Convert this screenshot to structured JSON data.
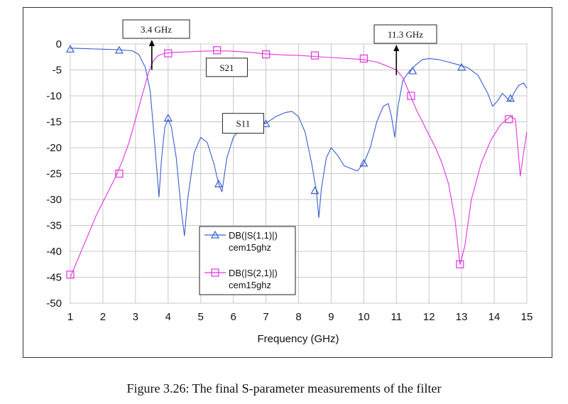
{
  "caption": "Figure 3.26: The final S-parameter measurements of the filter",
  "chart_data": {
    "type": "line",
    "title": "",
    "xlabel": "Frequency (GHz)",
    "ylabel": "",
    "xlim": [
      1,
      15
    ],
    "ylim": [
      -50,
      0
    ],
    "xticks": [
      "1",
      "2",
      "3",
      "4",
      "5",
      "6",
      "7",
      "8",
      "9",
      "10",
      "11",
      "12",
      "13",
      "14",
      "15"
    ],
    "yticks": [
      "0",
      "-5",
      "-10",
      "-15",
      "-20",
      "-25",
      "-30",
      "-35",
      "-40",
      "-45",
      "-50"
    ],
    "grid": true,
    "legend_placement": "bottom-center",
    "series": [
      {
        "name": "DB(|S(1,1)|)",
        "sub": "cem15ghz",
        "color": "#3a5fcd",
        "marker": "triangle",
        "x": [
          1.0,
          1.5,
          2.0,
          2.5,
          2.9,
          3.1,
          3.3,
          3.45,
          3.6,
          3.72,
          3.8,
          3.9,
          4.0,
          4.1,
          4.25,
          4.4,
          4.5,
          4.6,
          4.8,
          5.0,
          5.2,
          5.4,
          5.55,
          5.65,
          5.8,
          6.0,
          6.2,
          6.4,
          6.6,
          6.8,
          7.0,
          7.3,
          7.6,
          7.8,
          8.0,
          8.2,
          8.4,
          8.55,
          8.62,
          8.7,
          8.85,
          9.0,
          9.2,
          9.4,
          9.6,
          9.8,
          10.0,
          10.2,
          10.4,
          10.6,
          10.75,
          10.85,
          10.95,
          11.05,
          11.2,
          11.4,
          11.6,
          11.8,
          12.0,
          12.3,
          12.6,
          12.9,
          13.2,
          13.5,
          13.8,
          13.95,
          14.1,
          14.25,
          14.4,
          14.5,
          14.6,
          14.75,
          14.9,
          15.0
        ],
        "y": [
          -0.8,
          -0.9,
          -1.0,
          -1.1,
          -1.3,
          -2.0,
          -4.5,
          -9.0,
          -20.0,
          -29.5,
          -22.0,
          -16.0,
          -14.5,
          -16.0,
          -22.0,
          -32.0,
          -37.0,
          -30.0,
          -21.0,
          -18.0,
          -19.0,
          -23.0,
          -27.0,
          -28.5,
          -22.0,
          -18.0,
          -16.5,
          -17.0,
          -16.0,
          -15.5,
          -15.3,
          -14.0,
          -13.2,
          -13.0,
          -14.0,
          -17.0,
          -23.0,
          -28.5,
          -33.5,
          -28.0,
          -22.0,
          -20.0,
          -21.5,
          -23.5,
          -24.0,
          -24.5,
          -23.0,
          -20.0,
          -15.0,
          -12.0,
          -11.5,
          -14.0,
          -18.0,
          -12.0,
          -7.0,
          -5.2,
          -4.0,
          -3.0,
          -2.8,
          -3.0,
          -3.5,
          -4.0,
          -4.6,
          -6.0,
          -9.5,
          -12.0,
          -11.0,
          -9.5,
          -10.5,
          -11.0,
          -9.5,
          -8.0,
          -7.5,
          -8.5
        ],
        "markers": [
          [
            1.0,
            -1.0
          ],
          [
            2.5,
            -1.2
          ],
          [
            4.0,
            -14.3
          ],
          [
            5.55,
            -27.0
          ],
          [
            7.0,
            -15.4
          ],
          [
            8.5,
            -28.3
          ],
          [
            10.0,
            -23.0
          ],
          [
            11.5,
            -5.2
          ],
          [
            13.0,
            -4.5
          ],
          [
            14.5,
            -10.5
          ]
        ]
      },
      {
        "name": "DB(|S(2,1)|)",
        "sub": "cem15ghz",
        "color": "#e233e2",
        "marker": "square",
        "x": [
          1.0,
          1.2,
          1.4,
          1.6,
          1.8,
          2.0,
          2.2,
          2.4,
          2.6,
          2.8,
          3.0,
          3.2,
          3.4,
          3.55,
          3.7,
          3.9,
          4.2,
          4.6,
          5.0,
          5.5,
          6.0,
          6.5,
          7.0,
          7.5,
          8.0,
          8.5,
          9.0,
          9.5,
          10.0,
          10.4,
          10.7,
          11.0,
          11.2,
          11.4,
          11.6,
          11.8,
          12.0,
          12.2,
          12.4,
          12.6,
          12.8,
          12.95,
          13.1,
          13.3,
          13.6,
          13.9,
          14.2,
          14.5,
          14.65,
          14.8,
          14.9,
          15.0
        ],
        "y": [
          -45.0,
          -42.0,
          -39.0,
          -36.0,
          -33.0,
          -30.5,
          -28.0,
          -25.5,
          -22.5,
          -19.0,
          -14.5,
          -10.0,
          -5.5,
          -3.2,
          -2.2,
          -1.8,
          -1.6,
          -1.5,
          -1.4,
          -1.3,
          -1.4,
          -1.6,
          -1.9,
          -2.1,
          -2.2,
          -2.4,
          -2.6,
          -2.8,
          -3.0,
          -3.5,
          -4.2,
          -5.0,
          -6.5,
          -9.5,
          -12.5,
          -15.0,
          -17.5,
          -20.0,
          -23.0,
          -27.0,
          -34.0,
          -42.5,
          -39.0,
          -30.0,
          -23.0,
          -18.5,
          -15.5,
          -14.0,
          -14.5,
          -25.5,
          -21.0,
          -17.0
        ],
        "markers": [
          [
            1.0,
            -44.5
          ],
          [
            2.5,
            -25.0
          ],
          [
            4.0,
            -1.8
          ],
          [
            5.5,
            -1.2
          ],
          [
            7.0,
            -2.0
          ],
          [
            8.5,
            -2.2
          ],
          [
            10.0,
            -2.8
          ],
          [
            11.45,
            -10.0
          ],
          [
            12.95,
            -42.5
          ],
          [
            14.45,
            -14.5
          ]
        ]
      }
    ],
    "annotations": [
      {
        "text": "3.4 GHz",
        "x": 3.5,
        "arrow": true
      },
      {
        "text": "11.3 GHz",
        "x": 11.0,
        "arrow": true
      },
      {
        "text": "S21",
        "x": 5.8,
        "y": -4.5
      },
      {
        "text": "S11",
        "x": 6.3,
        "y": -15.3
      }
    ]
  }
}
